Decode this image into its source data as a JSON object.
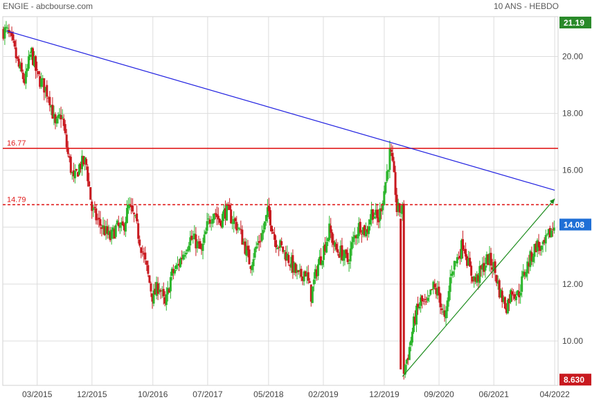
{
  "header": {
    "title": "ENGIE - abcbourse.com",
    "period": "10 ANS - HEBDO"
  },
  "colors": {
    "up": "#2bb52b",
    "down": "#c8191f",
    "resistance": "#e01b1b",
    "trend_down": "#1e1ee0",
    "trend_up": "#1a8a1a",
    "badge_high": "#2a8a2a",
    "badge_last": "#1f6fd6",
    "badge_low": "#c8191f",
    "grid": "#dcdcdc"
  },
  "chart_data": {
    "type": "candlestick",
    "title": "ENGIE - abcbourse.com",
    "period": "10 ANS - HEBDO",
    "xlabel": "",
    "ylabel": "",
    "x_ticks": [
      "03/2015",
      "12/2015",
      "10/2016",
      "07/2017",
      "05/2018",
      "02/2019",
      "12/2019",
      "09/2020",
      "06/2021",
      "04/2022"
    ],
    "y_ticks": [
      10.0,
      12.0,
      14.0,
      16.0,
      18.0,
      20.0
    ],
    "y_tick_labels": [
      "10.00",
      "12.00",
      "",
      "16.00",
      "18.00",
      "20.00"
    ],
    "ylim": [
      8.44,
      21.4
    ],
    "grid": true,
    "price_badges": [
      {
        "label": "21.19",
        "value": 21.19,
        "kind": "high"
      },
      {
        "label": "14.08",
        "value": 14.08,
        "kind": "last"
      },
      {
        "label": "8.630",
        "value": 8.63,
        "kind": "low"
      }
    ],
    "levels": [
      {
        "label": "16.77",
        "value": 16.77,
        "style": "solid"
      },
      {
        "label": "14.79",
        "value": 14.79,
        "style": "dashed"
      }
    ],
    "trendlines": [
      {
        "name": "descending",
        "start": {
          "date": "2014-10",
          "value": 20.9
        },
        "end": {
          "date": "2022-04",
          "value": 15.3
        }
      },
      {
        "name": "ascending",
        "start": {
          "date": "2020-03",
          "value": 8.75
        },
        "end": {
          "date": "2022-04",
          "value": 15.0
        }
      }
    ],
    "path": [
      [
        "2014-10",
        20.9
      ],
      [
        "2014-11",
        20.4
      ],
      [
        "2014-12",
        19.6
      ],
      [
        "2015-01",
        19.1
      ],
      [
        "2015-02",
        20.2
      ],
      [
        "2015-03",
        19.3
      ],
      [
        "2015-04",
        19.0
      ],
      [
        "2015-05",
        18.6
      ],
      [
        "2015-06",
        17.5
      ],
      [
        "2015-07",
        18.0
      ],
      [
        "2015-08",
        16.6
      ],
      [
        "2015-09",
        15.6
      ],
      [
        "2015-10",
        16.2
      ],
      [
        "2015-11",
        16.3
      ],
      [
        "2015-12",
        14.6
      ],
      [
        "2016-01",
        14.2
      ],
      [
        "2016-02",
        13.9
      ],
      [
        "2016-03",
        13.6
      ],
      [
        "2016-04",
        14.0
      ],
      [
        "2016-05",
        13.9
      ],
      [
        "2016-06",
        14.7
      ],
      [
        "2016-07",
        14.3
      ],
      [
        "2016-08",
        13.4
      ],
      [
        "2016-09",
        12.5
      ],
      [
        "2016-10",
        11.5
      ],
      [
        "2016-11",
        12.0
      ],
      [
        "2016-12",
        11.2
      ],
      [
        "2017-01",
        12.3
      ],
      [
        "2017-02",
        12.6
      ],
      [
        "2017-03",
        13.1
      ],
      [
        "2017-04",
        13.6
      ],
      [
        "2017-05",
        13.5
      ],
      [
        "2017-06",
        13.1
      ],
      [
        "2017-07",
        14.1
      ],
      [
        "2017-08",
        14.6
      ],
      [
        "2017-09",
        14.2
      ],
      [
        "2017-10",
        14.6
      ],
      [
        "2017-11",
        14.3
      ],
      [
        "2017-12",
        14.0
      ],
      [
        "2018-01",
        13.4
      ],
      [
        "2018-02",
        12.7
      ],
      [
        "2018-03",
        13.3
      ],
      [
        "2018-04",
        13.8
      ],
      [
        "2018-05",
        14.6
      ],
      [
        "2018-06",
        13.6
      ],
      [
        "2018-07",
        13.3
      ],
      [
        "2018-08",
        13.0
      ],
      [
        "2018-09",
        12.6
      ],
      [
        "2018-10",
        12.2
      ],
      [
        "2018-11",
        12.5
      ],
      [
        "2018-12",
        11.6
      ],
      [
        "2019-01",
        12.6
      ],
      [
        "2019-02",
        13.2
      ],
      [
        "2019-03",
        13.9
      ],
      [
        "2019-04",
        13.2
      ],
      [
        "2019-05",
        13.1
      ],
      [
        "2019-06",
        12.8
      ],
      [
        "2019-07",
        13.6
      ],
      [
        "2019-08",
        14.1
      ],
      [
        "2019-09",
        13.8
      ],
      [
        "2019-10",
        14.6
      ],
      [
        "2019-11",
        14.2
      ],
      [
        "2019-12",
        15.3
      ],
      [
        "2020-01",
        16.7
      ],
      [
        "2020-02",
        15.0
      ],
      [
        "2020-03",
        8.8
      ],
      [
        "2020-04",
        9.6
      ],
      [
        "2020-05",
        10.8
      ],
      [
        "2020-06",
        11.4
      ],
      [
        "2020-07",
        11.2
      ],
      [
        "2020-08",
        11.9
      ],
      [
        "2020-09",
        11.6
      ],
      [
        "2020-10",
        10.6
      ],
      [
        "2020-11",
        12.5
      ],
      [
        "2020-12",
        12.9
      ],
      [
        "2021-01",
        13.5
      ],
      [
        "2021-02",
        12.5
      ],
      [
        "2021-03",
        12.1
      ],
      [
        "2021-04",
        12.5
      ],
      [
        "2021-05",
        12.9
      ],
      [
        "2021-06",
        12.6
      ],
      [
        "2021-07",
        11.7
      ],
      [
        "2021-08",
        11.2
      ],
      [
        "2021-09",
        11.8
      ],
      [
        "2021-10",
        11.6
      ],
      [
        "2021-11",
        12.4
      ],
      [
        "2021-12",
        12.9
      ],
      [
        "2022-01",
        13.4
      ],
      [
        "2022-02",
        13.2
      ],
      [
        "2022-03",
        13.7
      ],
      [
        "2022-04",
        14.08
      ]
    ]
  }
}
